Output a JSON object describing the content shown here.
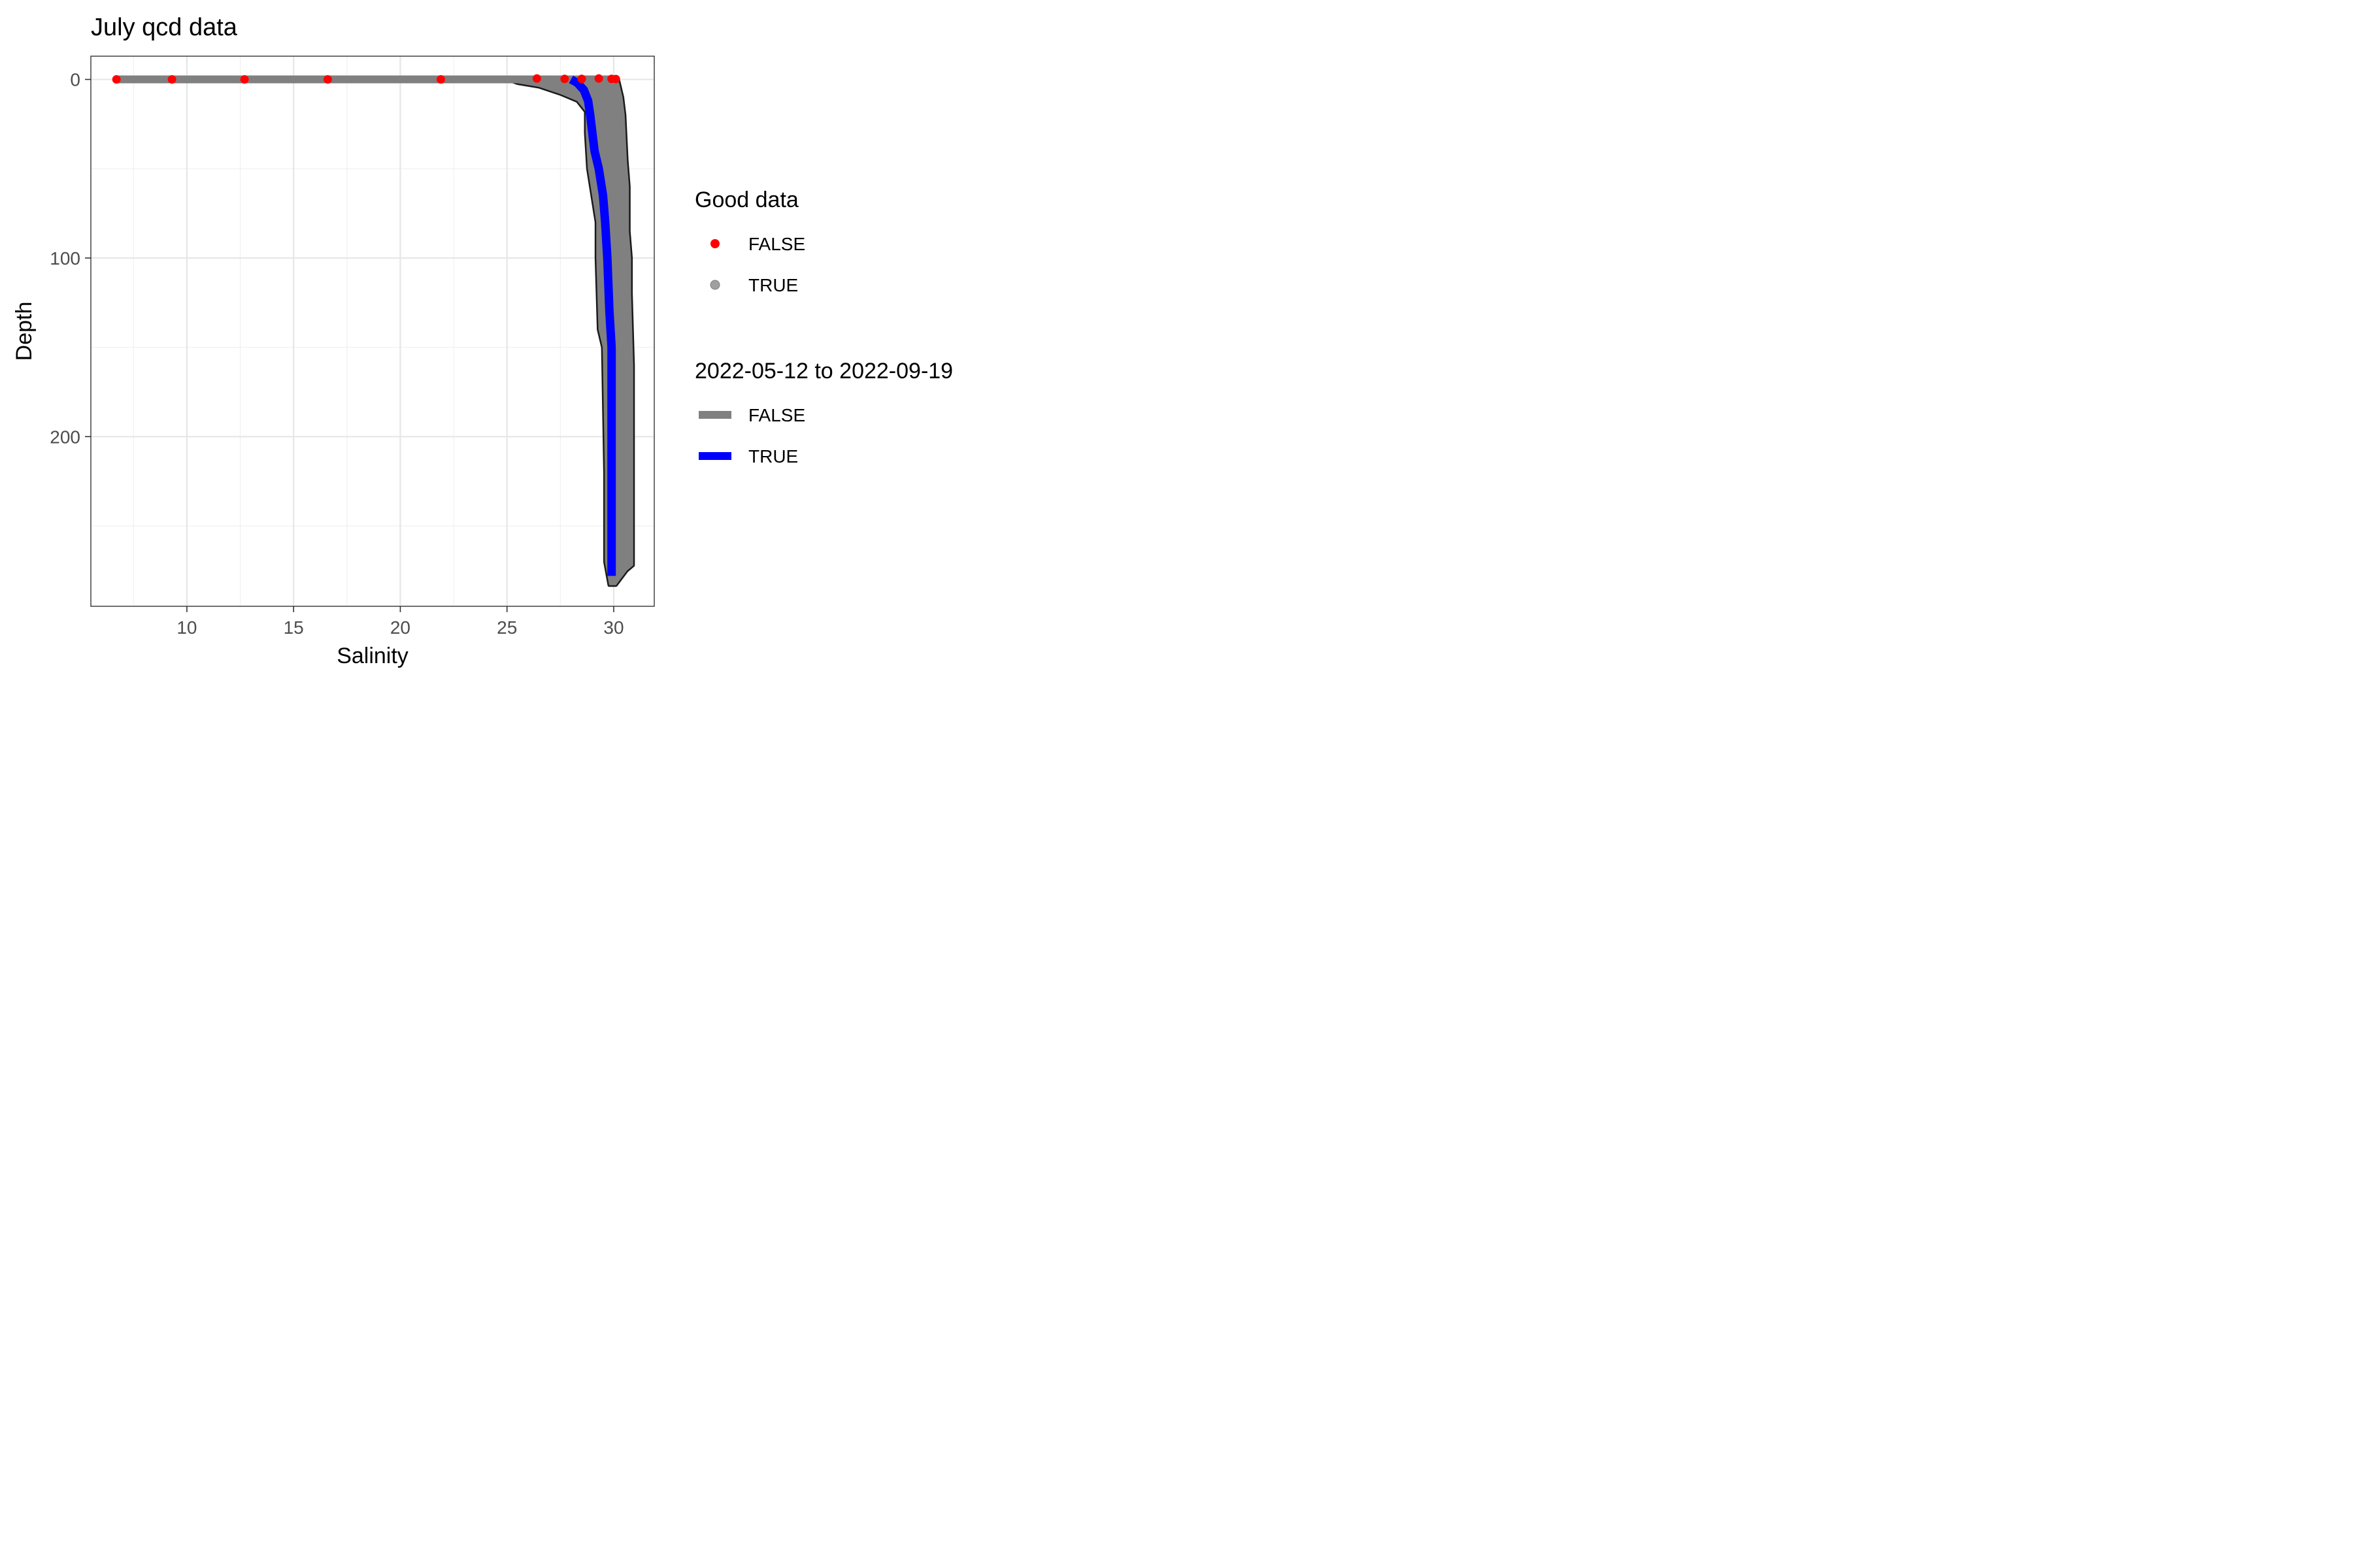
{
  "chart_data": {
    "type": "line",
    "title": "July qcd data",
    "xlabel": "Salinity",
    "ylabel": "Depth",
    "xlim": [
      5.5,
      31.9
    ],
    "ylim": [
      -13,
      295
    ],
    "y_reversed": true,
    "x_ticks": [
      10,
      15,
      20,
      25,
      30
    ],
    "y_ticks": [
      0,
      100,
      200
    ],
    "grid": true,
    "legend_placement": "right",
    "legends": [
      {
        "title": "Good data",
        "entries": [
          {
            "label": "FALSE",
            "kind": "point",
            "color": "#ff0000"
          },
          {
            "label": "TRUE",
            "kind": "point",
            "color": "#a0a0a0"
          }
        ]
      },
      {
        "title": "2022-05-12 to 2022-09-19",
        "entries": [
          {
            "label": "FALSE",
            "kind": "line",
            "color": "#808080"
          },
          {
            "label": "TRUE",
            "kind": "line",
            "color": "#0000ff"
          }
        ]
      }
    ],
    "points_false": [
      [
        6.7,
        0.0
      ],
      [
        9.3,
        0.0
      ],
      [
        12.7,
        0.0
      ],
      [
        16.6,
        0.0
      ],
      [
        21.9,
        0.0
      ],
      [
        26.4,
        -0.5
      ],
      [
        27.7,
        -0.3
      ],
      [
        28.5,
        -0.3
      ],
      [
        29.3,
        -0.5
      ],
      [
        29.9,
        -0.3
      ],
      [
        30.1,
        -0.2
      ]
    ],
    "grey_envelope": {
      "name": "FALSE",
      "left": [
        [
          6.7,
          0
        ],
        [
          25.0,
          0
        ],
        [
          25.5,
          2
        ],
        [
          26.5,
          4
        ],
        [
          27.5,
          8
        ],
        [
          28.3,
          12
        ],
        [
          28.7,
          18
        ],
        [
          28.7,
          30
        ],
        [
          28.8,
          50
        ],
        [
          29.0,
          65
        ],
        [
          29.2,
          80
        ],
        [
          29.2,
          100
        ],
        [
          29.3,
          140
        ],
        [
          29.5,
          150
        ],
        [
          29.6,
          220
        ],
        [
          29.6,
          270
        ],
        [
          29.8,
          283
        ],
        [
          30.1,
          283
        ]
      ],
      "right": [
        [
          30.1,
          283
        ],
        [
          30.6,
          275
        ],
        [
          30.9,
          272
        ],
        [
          30.9,
          160
        ],
        [
          30.8,
          120
        ],
        [
          30.8,
          100
        ],
        [
          30.7,
          85
        ],
        [
          30.7,
          60
        ],
        [
          30.6,
          45
        ],
        [
          30.5,
          20
        ],
        [
          30.4,
          10
        ],
        [
          30.2,
          0
        ],
        [
          6.7,
          0
        ]
      ]
    },
    "blue_mean_profile": {
      "name": "TRUE",
      "points": [
        [
          28.0,
          0
        ],
        [
          28.3,
          2
        ],
        [
          28.6,
          6
        ],
        [
          28.8,
          12
        ],
        [
          28.9,
          20
        ],
        [
          29.0,
          30
        ],
        [
          29.1,
          40
        ],
        [
          29.3,
          50
        ],
        [
          29.5,
          65
        ],
        [
          29.6,
          80
        ],
        [
          29.7,
          100
        ],
        [
          29.8,
          130
        ],
        [
          29.9,
          150
        ],
        [
          29.9,
          200
        ],
        [
          29.9,
          240
        ],
        [
          29.9,
          278
        ]
      ]
    }
  }
}
